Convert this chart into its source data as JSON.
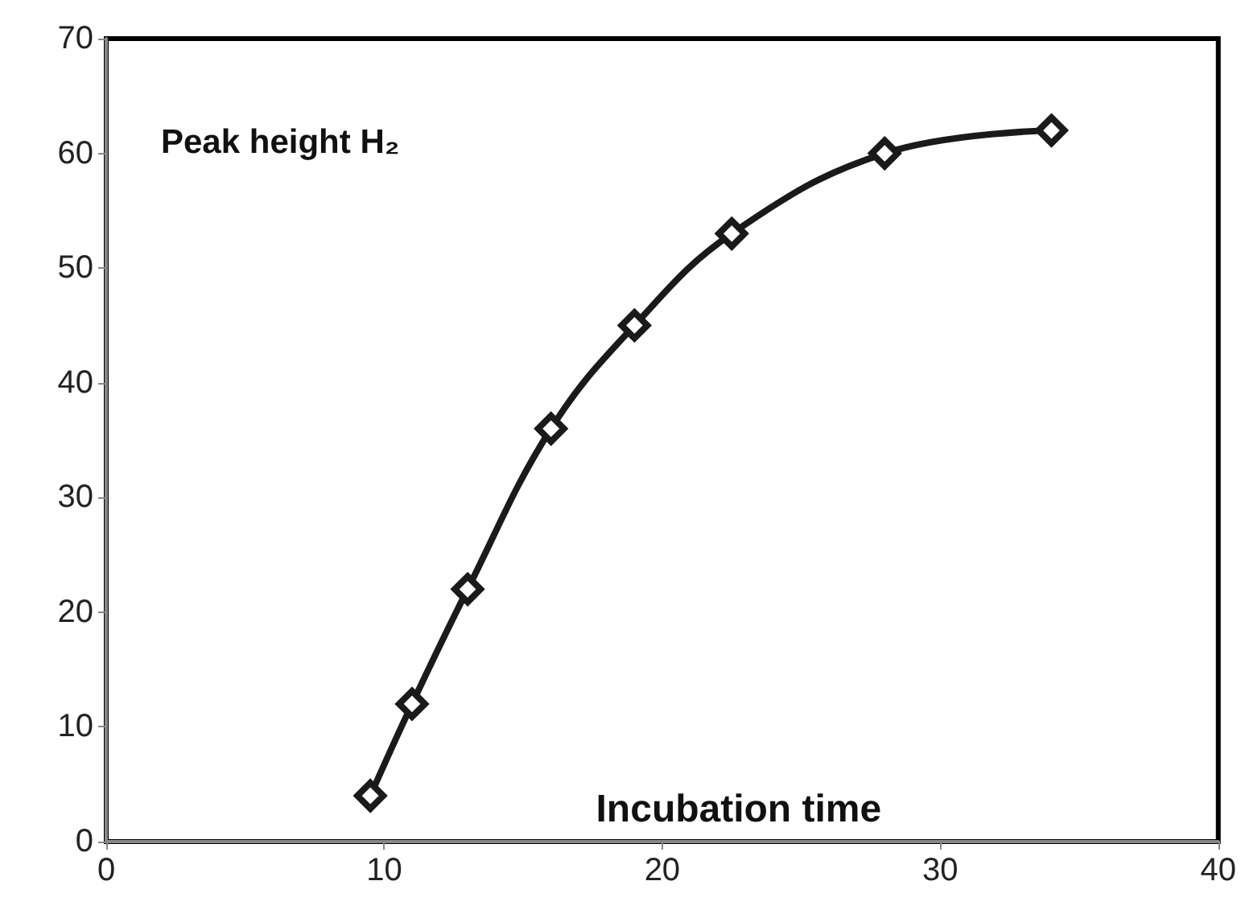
{
  "chart_data": {
    "type": "line",
    "xlabel": "Incubation time",
    "ylabel": "Peak height H₂",
    "x": [
      9.5,
      11,
      13,
      16,
      19,
      22.5,
      28,
      34
    ],
    "series": [
      {
        "color": "#1a1a1a",
        "values": [
          4,
          12,
          22,
          36,
          45,
          53,
          60,
          62
        ]
      }
    ],
    "xlim": [
      0,
      40
    ],
    "xticks": [
      0,
      10,
      20,
      30,
      40
    ],
    "ylim": [
      0,
      70
    ],
    "yticks": [
      0,
      10,
      20,
      30,
      40,
      50,
      60,
      70
    ],
    "grid": false,
    "marker": "diamond",
    "line_style": "solid"
  }
}
